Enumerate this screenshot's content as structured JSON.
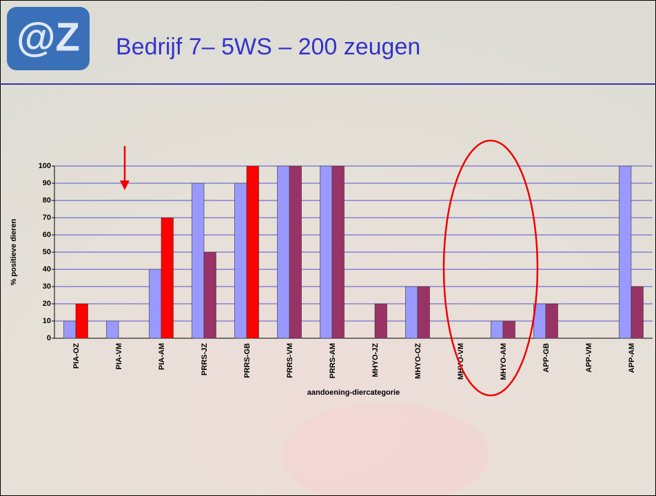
{
  "logo": "@Z",
  "chart_data": {
    "type": "bar",
    "title": "Bedrijf 7– 5WS – 200 zeugen",
    "x_label": "aandoening-diercategorie",
    "y_label": "% positieve dieren",
    "categories": [
      "PIA-OZ",
      "PIA-VM",
      "PIA-AM",
      "PRRS-JZ",
      "PRRS-GB",
      "PRRS-VM",
      "PRRS-AM",
      "MHYO-JZ",
      "MHYO-OZ",
      "MHYO-VM",
      "MHYO-AM",
      "APP-GB",
      "APP-VM",
      "APP-AM"
    ],
    "series": [
      {
        "color": "#9999ff",
        "values": [
          10,
          10,
          40,
          90,
          90,
          100,
          100,
          0,
          30,
          0,
          10,
          20,
          0,
          100
        ]
      },
      {
        "color": "#993366",
        "colors": [
          "#ff0000",
          "#993366",
          "#ff0000",
          "#993366",
          "#ff0000",
          "#993366",
          "#993366",
          "#993366",
          "#993366",
          "#993366",
          "#993366",
          "#993366",
          "#993366",
          "#993366"
        ],
        "values": [
          20,
          0,
          70,
          50,
          100,
          100,
          100,
          20,
          30,
          0,
          10,
          20,
          0,
          30
        ]
      }
    ],
    "ylim": [
      0,
      100
    ],
    "yticks": [
      0,
      10,
      20,
      30,
      40,
      50,
      60,
      70,
      80,
      90,
      100
    ],
    "grid": true
  }
}
